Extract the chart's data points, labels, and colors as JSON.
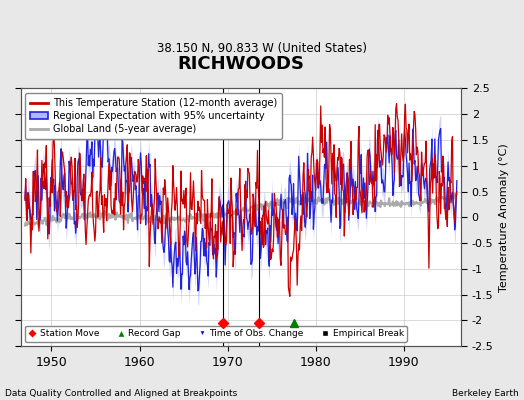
{
  "title": "RICHWOODS",
  "subtitle": "38.150 N, 90.833 W (United States)",
  "ylabel": "Temperature Anomaly (°C)",
  "footer_left": "Data Quality Controlled and Aligned at Breakpoints",
  "footer_right": "Berkeley Earth",
  "ylim": [
    -2.5,
    2.5
  ],
  "xlim": [
    1946.5,
    1996.5
  ],
  "yticks": [
    -2.5,
    -2,
    -1.5,
    -1,
    -0.5,
    0,
    0.5,
    1,
    1.5,
    2,
    2.5
  ],
  "xticks": [
    1950,
    1960,
    1970,
    1980,
    1990
  ],
  "bg_color": "#e8e8e8",
  "plot_bg_color": "#ffffff",
  "grid_color": "#cccccc",
  "station_move_years": [
    1969.5,
    1973.5
  ],
  "record_gap_years": [
    1977.5
  ],
  "time_obs_change_years": [],
  "empirical_break_years": [],
  "marker_y": -2.05
}
